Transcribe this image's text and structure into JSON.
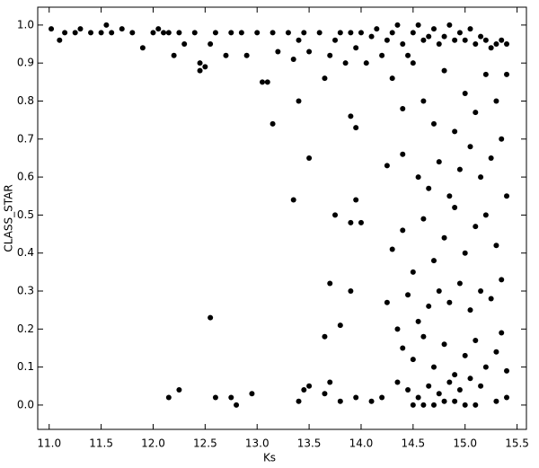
{
  "chart_data": {
    "type": "scatter",
    "x_label": "Ks",
    "y_label": "CLASS_STAR",
    "color": "#000000",
    "xlim": [
      10.89,
      15.59
    ],
    "ylim": [
      -0.064,
      1.047
    ],
    "xticks": [
      {
        "value": 11,
        "label": "11.0"
      },
      11.5,
      {
        "value": 12,
        "label": "12.0"
      },
      12.5,
      {
        "value": 13,
        "label": "13.0"
      },
      13.5,
      {
        "value": 14,
        "label": "14.0"
      },
      14.5,
      {
        "value": 15,
        "label": "15.0"
      },
      15.5
    ],
    "yticks": [
      {
        "value": 0,
        "label": "0.0"
      },
      0.1,
      0.2,
      0.3,
      0.4,
      0.5,
      0.6,
      0.7,
      0.8,
      0.9,
      {
        "value": 1,
        "label": "1.0"
      }
    ],
    "x": [
      11.02,
      11.1,
      11.15,
      11.25,
      11.3,
      11.4,
      11.5,
      11.55,
      11.6,
      11.7,
      11.8,
      11.9,
      12.0,
      12.05,
      12.1,
      12.15,
      12.2,
      12.25,
      12.3,
      12.4,
      12.45,
      12.45,
      12.5,
      12.55,
      12.6,
      12.7,
      12.75,
      12.85,
      12.9,
      13.0,
      13.05,
      13.1,
      13.15,
      13.2,
      13.3,
      13.35,
      13.4,
      13.45,
      13.5,
      13.6,
      13.65,
      13.7,
      13.75,
      13.8,
      13.85,
      13.9,
      13.95,
      14.0,
      14.05,
      14.1,
      14.15,
      14.2,
      14.25,
      14.3,
      14.35,
      14.4,
      14.45,
      14.5,
      14.55,
      14.6,
      14.65,
      14.7,
      14.75,
      14.8,
      14.85,
      14.9,
      14.95,
      15.0,
      15.05,
      15.1,
      15.15,
      15.2,
      15.25,
      15.3,
      15.35,
      15.4,
      14.3,
      14.4,
      14.5,
      14.6,
      14.7,
      14.8,
      14.9,
      15.0,
      15.1,
      15.2,
      15.3,
      15.4,
      15.35,
      15.25,
      15.15,
      15.05,
      14.95,
      14.85,
      14.75,
      14.65,
      14.55,
      14.4,
      14.25,
      13.15,
      13.4,
      13.5,
      13.35,
      13.9,
      13.95,
      13.75,
      13.9,
      14.0,
      13.95,
      14.3,
      14.4,
      14.5,
      14.6,
      14.7,
      14.8,
      14.9,
      15.0,
      15.1,
      15.2,
      15.3,
      15.4,
      15.35,
      15.25,
      15.15,
      15.05,
      14.95,
      14.85,
      14.75,
      14.65,
      14.55,
      14.45,
      14.35,
      14.25,
      13.7,
      13.9,
      13.8,
      13.65,
      12.55,
      14.4,
      14.5,
      14.6,
      14.7,
      14.8,
      14.9,
      15.0,
      15.1,
      15.2,
      15.3,
      15.4,
      15.35,
      15.15,
      15.05,
      14.95,
      14.85,
      14.75,
      14.65,
      14.55,
      14.45,
      14.35,
      14.2,
      14.1,
      13.95,
      13.8,
      13.7,
      13.5,
      13.45,
      13.4,
      13.65,
      12.95,
      12.75,
      12.8,
      12.6,
      12.25,
      12.15,
      14.5,
      14.7,
      14.9,
      15.1,
      15.3,
      15.4,
      15.0,
      14.8,
      14.6
    ],
    "values": [
      0.99,
      0.96,
      0.98,
      0.98,
      0.99,
      0.98,
      0.98,
      1.0,
      0.98,
      0.99,
      0.98,
      0.94,
      0.98,
      0.99,
      0.98,
      0.98,
      0.92,
      0.98,
      0.95,
      0.98,
      0.9,
      0.88,
      0.89,
      0.95,
      0.98,
      0.92,
      0.98,
      0.98,
      0.92,
      0.98,
      0.85,
      0.85,
      0.98,
      0.93,
      0.98,
      0.91,
      0.96,
      0.98,
      0.93,
      0.98,
      0.86,
      0.92,
      0.96,
      0.98,
      0.9,
      0.98,
      0.94,
      0.98,
      0.9,
      0.97,
      0.99,
      0.92,
      0.96,
      0.98,
      1.0,
      0.95,
      0.92,
      0.98,
      1.0,
      0.96,
      0.97,
      0.99,
      0.95,
      0.97,
      1.0,
      0.96,
      0.98,
      0.96,
      0.99,
      0.95,
      0.97,
      0.96,
      0.94,
      0.95,
      0.96,
      0.95,
      0.86,
      0.78,
      0.9,
      0.8,
      0.74,
      0.88,
      0.72,
      0.82,
      0.77,
      0.87,
      0.8,
      0.87,
      0.7,
      0.65,
      0.6,
      0.68,
      0.62,
      0.55,
      0.64,
      0.57,
      0.6,
      0.66,
      0.63,
      0.74,
      0.8,
      0.65,
      0.54,
      0.76,
      0.73,
      0.5,
      0.48,
      0.48,
      0.54,
      0.41,
      0.46,
      0.35,
      0.49,
      0.38,
      0.44,
      0.52,
      0.4,
      0.47,
      0.5,
      0.42,
      0.55,
      0.33,
      0.28,
      0.3,
      0.25,
      0.32,
      0.27,
      0.3,
      0.26,
      0.22,
      0.29,
      0.2,
      0.27,
      0.32,
      0.3,
      0.21,
      0.18,
      0.23,
      0.15,
      0.12,
      0.18,
      0.1,
      0.16,
      0.08,
      0.13,
      0.17,
      0.1,
      0.14,
      0.09,
      0.19,
      0.05,
      0.07,
      0.04,
      0.06,
      0.03,
      0.05,
      0.02,
      0.04,
      0.06,
      0.02,
      0.01,
      0.02,
      0.01,
      0.06,
      0.05,
      0.04,
      0.01,
      0.03,
      0.03,
      0.02,
      0.0,
      0.02,
      0.04,
      0.02,
      0.0,
      0.0,
      0.01,
      0.0,
      0.01,
      0.02,
      0.0,
      0.01,
      0.0
    ]
  }
}
